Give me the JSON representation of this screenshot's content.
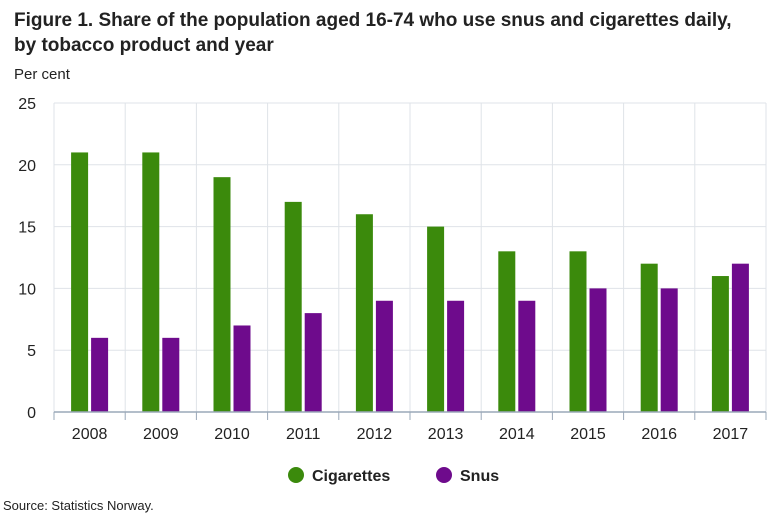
{
  "title": "Figure 1. Share of the population aged 16-74 who use snus and cigarettes daily, by tobacco product and year",
  "source": "Source: Statistics Norway.",
  "colors": {
    "cigarettes": "#3b8a0c",
    "snus": "#6e0b8c",
    "grid": "#dfe3e8",
    "axis": "#9aa8b8"
  },
  "chart_data": {
    "type": "bar",
    "title": "Figure 1. Share of the population aged 16-74 who use snus and cigarettes daily, by tobacco product and year",
    "xlabel": "",
    "ylabel": "Per cent",
    "ylim": [
      0,
      25
    ],
    "yticks": [
      0,
      5,
      10,
      15,
      20,
      25
    ],
    "grid": true,
    "legend": "bottom-center",
    "categories": [
      "2008",
      "2009",
      "2010",
      "2011",
      "2012",
      "2013",
      "2014",
      "2015",
      "2016",
      "2017"
    ],
    "series": [
      {
        "name": "Cigarettes",
        "color": "#3b8a0c",
        "values": [
          21,
          21,
          19,
          17,
          16,
          15,
          13,
          13,
          12,
          11
        ]
      },
      {
        "name": "Snus",
        "color": "#6e0b8c",
        "values": [
          6,
          6,
          7,
          8,
          9,
          9,
          9,
          10,
          10,
          12
        ]
      }
    ]
  }
}
